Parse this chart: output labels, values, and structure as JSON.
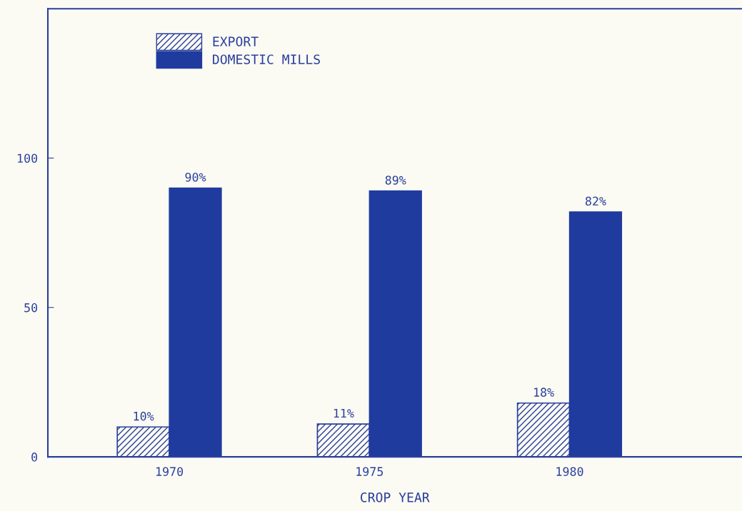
{
  "chart_data": {
    "type": "bar",
    "xlabel": "CROP YEAR",
    "categories": [
      "1970",
      "1975",
      "1980"
    ],
    "series": [
      {
        "name": "EXPORT",
        "color": "#2a3f9c",
        "values": [
          10,
          11,
          18
        ],
        "value_labels": [
          "10%",
          "11%",
          "18%"
        ]
      },
      {
        "name": "DOMESTIC MILLS",
        "color": "#1f3b9e",
        "values": [
          90,
          89,
          82
        ],
        "value_labels": [
          "90%",
          "89%",
          "82%"
        ]
      }
    ],
    "ylim": [
      0,
      150
    ],
    "yticks": [
      0,
      50,
      100
    ],
    "grid": false,
    "legend": "top left"
  }
}
